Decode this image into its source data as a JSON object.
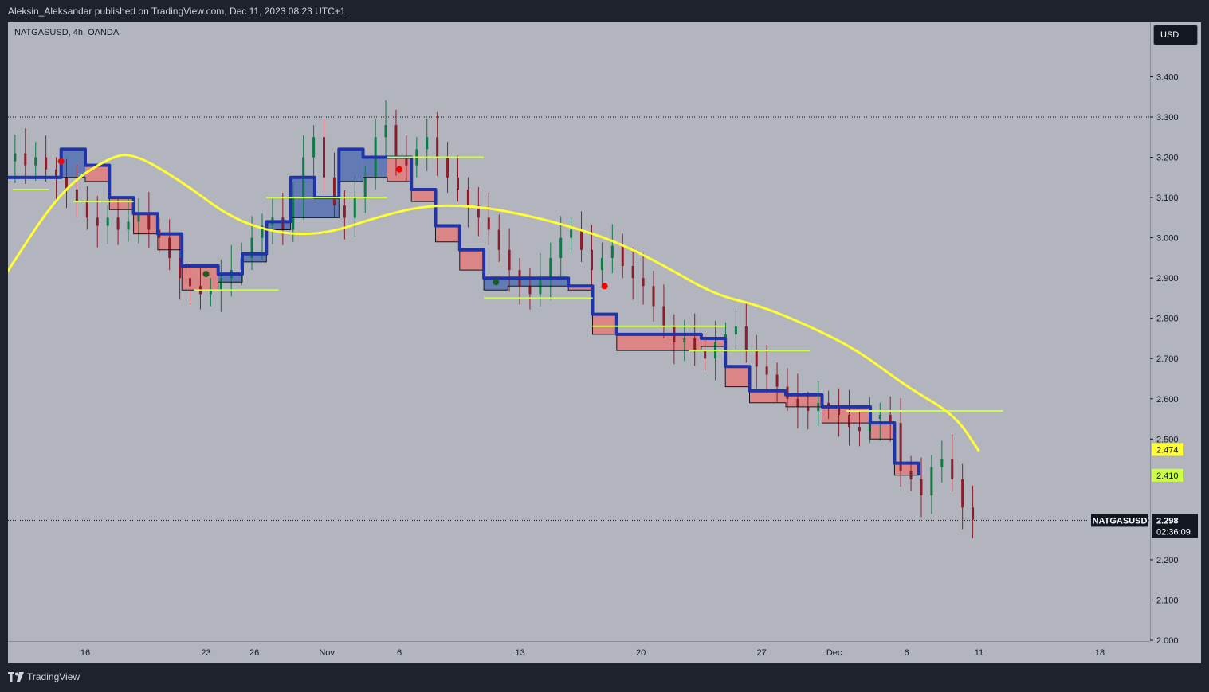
{
  "header": {
    "publisher_text": "Aleksin_Aleksandar published on TradingView.com, Dec 11, 2023 08:23 UTC+1"
  },
  "chart_header": {
    "symbol_line": "NATGASUSD, 4h, OANDA"
  },
  "currency_button": {
    "label": "USD"
  },
  "footer": {
    "brand": "TradingView"
  },
  "colors": {
    "background": "#b2b5be",
    "frame": "#1e222d",
    "moving_average": "#ffff33",
    "level_lines": "#ccff44",
    "bear_band": "#e08080",
    "bull_band": "#5a74b4",
    "stop_line": "#1f34a8",
    "candle_up": "#0c7b45",
    "candle_down": "#8b1d2b",
    "sell_dot": "#ff0000",
    "buy_dot": "#1b5e20"
  },
  "chart_data": {
    "type": "line",
    "symbol": "NATGASUSD",
    "interval": "4h",
    "source": "OANDA",
    "ylim": [
      2.0,
      3.45
    ],
    "y_ticks": [
      "3.400",
      "3.300",
      "3.200",
      "3.100",
      "3.000",
      "2.900",
      "2.800",
      "2.700",
      "2.600",
      "2.500",
      "2.200",
      "2.100",
      "2.000"
    ],
    "x_ticks": [
      "16",
      "23",
      "26",
      "Nov",
      "6",
      "13",
      "20",
      "27",
      "Dec",
      "6",
      "11",
      "18"
    ],
    "x_tick_index": [
      0,
      5,
      7,
      10,
      13,
      18,
      23,
      28,
      31,
      34,
      37,
      42
    ],
    "highlight_levels": [
      3.3,
      2.298
    ],
    "price_labels": [
      {
        "name": "NATGASUSD",
        "value": "2.298",
        "countdown": "02:36:09",
        "y": 2.298,
        "bg": "#131722",
        "fg": "#ffffff"
      },
      {
        "name": "",
        "value": "2.474",
        "y": 2.474,
        "bg": "#ffff33",
        "fg": "#131722"
      },
      {
        "name": "",
        "value": "2.410",
        "y": 2.41,
        "bg": "#ccff44",
        "fg": "#131722"
      }
    ],
    "series": [
      {
        "name": "",
        "type": "line",
        "points": [
          [
            -3.4,
            2.9
          ],
          [
            -1,
            3.12
          ],
          [
            1,
            3.2
          ],
          [
            2,
            3.21
          ],
          [
            4,
            3.14
          ],
          [
            6,
            3.05
          ],
          [
            8,
            3.01
          ],
          [
            10,
            3.01
          ],
          [
            12,
            3.05
          ],
          [
            14,
            3.08
          ],
          [
            16,
            3.08
          ],
          [
            18,
            3.06
          ],
          [
            20,
            3.03
          ],
          [
            22,
            2.99
          ],
          [
            24,
            2.93
          ],
          [
            26,
            2.86
          ],
          [
            28,
            2.83
          ],
          [
            30,
            2.78
          ],
          [
            32,
            2.72
          ],
          [
            34,
            2.63
          ],
          [
            36,
            2.56
          ],
          [
            37,
            2.47
          ]
        ]
      },
      {
        "name": "",
        "type": "step",
        "points": [
          [
            -3.4,
            3.15
          ],
          [
            -1,
            3.15
          ],
          [
            -1,
            3.22
          ],
          [
            0,
            3.22
          ],
          [
            0,
            3.18
          ],
          [
            1,
            3.18
          ],
          [
            1,
            3.1
          ],
          [
            2,
            3.1
          ],
          [
            2,
            3.06
          ],
          [
            3,
            3.06
          ],
          [
            3,
            3.01
          ],
          [
            4,
            3.01
          ],
          [
            4,
            2.93
          ],
          [
            5.5,
            2.93
          ],
          [
            5.5,
            2.91
          ],
          [
            6.5,
            2.91
          ],
          [
            6.5,
            2.96
          ],
          [
            7.5,
            2.96
          ],
          [
            7.5,
            3.04
          ],
          [
            8.5,
            3.04
          ],
          [
            8.5,
            3.15
          ],
          [
            9.5,
            3.15
          ],
          [
            9.5,
            3.1
          ],
          [
            10.5,
            3.1
          ],
          [
            10.5,
            3.22
          ],
          [
            11.5,
            3.22
          ],
          [
            11.5,
            3.2
          ],
          [
            12.5,
            3.2
          ],
          [
            12.5,
            3.2
          ],
          [
            13.5,
            3.2
          ],
          [
            13.5,
            3.12
          ],
          [
            14.5,
            3.12
          ],
          [
            14.5,
            3.03
          ],
          [
            15.5,
            3.03
          ],
          [
            15.5,
            2.97
          ],
          [
            16.5,
            2.97
          ],
          [
            16.5,
            2.9
          ],
          [
            17.5,
            2.9
          ],
          [
            17.5,
            2.9
          ],
          [
            20,
            2.9
          ],
          [
            20,
            2.88
          ],
          [
            21,
            2.88
          ],
          [
            21,
            2.81
          ],
          [
            22,
            2.81
          ],
          [
            22,
            2.76
          ],
          [
            24,
            2.76
          ],
          [
            24,
            2.76
          ],
          [
            25.5,
            2.76
          ],
          [
            25.5,
            2.75
          ],
          [
            26.5,
            2.75
          ],
          [
            26.5,
            2.68
          ],
          [
            27.5,
            2.68
          ],
          [
            27.5,
            2.62
          ],
          [
            29,
            2.62
          ],
          [
            29,
            2.61
          ],
          [
            30.5,
            2.61
          ],
          [
            30.5,
            2.58
          ],
          [
            32.5,
            2.58
          ],
          [
            32.5,
            2.54
          ],
          [
            33.5,
            2.54
          ],
          [
            33.5,
            2.44
          ],
          [
            34.5,
            2.44
          ],
          [
            34.5,
            2.41
          ]
        ]
      },
      {
        "name": "",
        "type": "step",
        "points": [
          [
            -3.4,
            3.15
          ],
          [
            -1,
            3.15
          ],
          [
            -1,
            3.15
          ],
          [
            0,
            3.15
          ],
          [
            0,
            3.14
          ],
          [
            1,
            3.14
          ],
          [
            1,
            3.07
          ],
          [
            2,
            3.07
          ],
          [
            2,
            3.01
          ],
          [
            3,
            3.01
          ],
          [
            3,
            2.97
          ],
          [
            4,
            2.97
          ],
          [
            4,
            2.87
          ],
          [
            5.5,
            2.87
          ],
          [
            5.5,
            2.89
          ],
          [
            6.5,
            2.89
          ],
          [
            6.5,
            2.94
          ],
          [
            7.5,
            2.94
          ],
          [
            7.5,
            3.02
          ],
          [
            8.5,
            3.02
          ],
          [
            8.5,
            3.05
          ],
          [
            9.5,
            3.05
          ],
          [
            9.5,
            3.05
          ],
          [
            10.5,
            3.05
          ],
          [
            10.5,
            3.14
          ],
          [
            11.5,
            3.14
          ],
          [
            11.5,
            3.15
          ],
          [
            12.5,
            3.15
          ],
          [
            12.5,
            3.14
          ],
          [
            13.5,
            3.14
          ],
          [
            13.5,
            3.09
          ],
          [
            14.5,
            3.09
          ],
          [
            14.5,
            2.99
          ],
          [
            15.5,
            2.99
          ],
          [
            15.5,
            2.92
          ],
          [
            16.5,
            2.92
          ],
          [
            16.5,
            2.87
          ],
          [
            17.5,
            2.87
          ],
          [
            17.5,
            2.88
          ],
          [
            20,
            2.88
          ],
          [
            20,
            2.87
          ],
          [
            21,
            2.87
          ],
          [
            21,
            2.76
          ],
          [
            22,
            2.76
          ],
          [
            22,
            2.72
          ],
          [
            24,
            2.72
          ],
          [
            24,
            2.72
          ],
          [
            25.5,
            2.72
          ],
          [
            25.5,
            2.73
          ],
          [
            26.5,
            2.73
          ],
          [
            26.5,
            2.63
          ],
          [
            27.5,
            2.63
          ],
          [
            27.5,
            2.59
          ],
          [
            29,
            2.59
          ],
          [
            29,
            2.58
          ],
          [
            30.5,
            2.58
          ],
          [
            30.5,
            2.54
          ],
          [
            32.5,
            2.54
          ],
          [
            32.5,
            2.5
          ],
          [
            33.5,
            2.5
          ],
          [
            33.5,
            2.41
          ],
          [
            34.5,
            2.41
          ],
          [
            34.5,
            2.41
          ]
        ]
      }
    ],
    "horizontal_segments": [
      {
        "y": 3.09,
        "x_from": -0.5,
        "x_to": 2
      },
      {
        "y": 3.12,
        "x_from": -3,
        "x_to": -1.5
      },
      {
        "y": 2.87,
        "x_from": 4.5,
        "x_to": 8
      },
      {
        "y": 3.1,
        "x_from": 7.5,
        "x_to": 12.5
      },
      {
        "y": 3.2,
        "x_from": 12.5,
        "x_to": 16.5
      },
      {
        "y": 2.85,
        "x_from": 16.5,
        "x_to": 21
      },
      {
        "y": 2.78,
        "x_from": 21,
        "x_to": 26.5
      },
      {
        "y": 2.72,
        "x_from": 25,
        "x_to": 30
      },
      {
        "y": 2.57,
        "x_from": 31.5,
        "x_to": 38
      }
    ],
    "signal_dots": [
      {
        "x": -1,
        "y": 3.19,
        "kind": "sell"
      },
      {
        "x": 13,
        "y": 3.17,
        "kind": "sell"
      },
      {
        "x": 21.5,
        "y": 2.88,
        "kind": "sell"
      },
      {
        "x": 5,
        "y": 2.91,
        "kind": "buy"
      },
      {
        "x": 17,
        "y": 2.89,
        "kind": "buy"
      }
    ],
    "candles_close": [
      3.19,
      3.21,
      3.18,
      3.2,
      3.17,
      3.15,
      3.12,
      3.09,
      3.05,
      3.03,
      3.05,
      3.02,
      3.04,
      3.06,
      3.02,
      3.0,
      2.95,
      2.9,
      2.88,
      2.86,
      2.87,
      2.9,
      2.92,
      2.95,
      3.0,
      3.03,
      3.05,
      3.02,
      3.1,
      3.2,
      3.25,
      3.15,
      3.08,
      3.05,
      3.1,
      3.15,
      3.25,
      3.28,
      3.2,
      3.18,
      3.22,
      3.25,
      3.2,
      3.15,
      3.12,
      3.08,
      3.05,
      3.02,
      2.97,
      2.92,
      2.88,
      2.86,
      2.9,
      2.95,
      3.0,
      3.02,
      2.97,
      2.92,
      2.95,
      2.98,
      2.93,
      2.9,
      2.88,
      2.83,
      2.78,
      2.74,
      2.75,
      2.72,
      2.7,
      2.74,
      2.76,
      2.78,
      2.72,
      2.68,
      2.66,
      2.63,
      2.6,
      2.58,
      2.57,
      2.59,
      2.58,
      2.56,
      2.53,
      2.52,
      2.55,
      2.56,
      2.54,
      2.42,
      2.4,
      2.36,
      2.43,
      2.45,
      2.4,
      2.33,
      2.3
    ]
  }
}
